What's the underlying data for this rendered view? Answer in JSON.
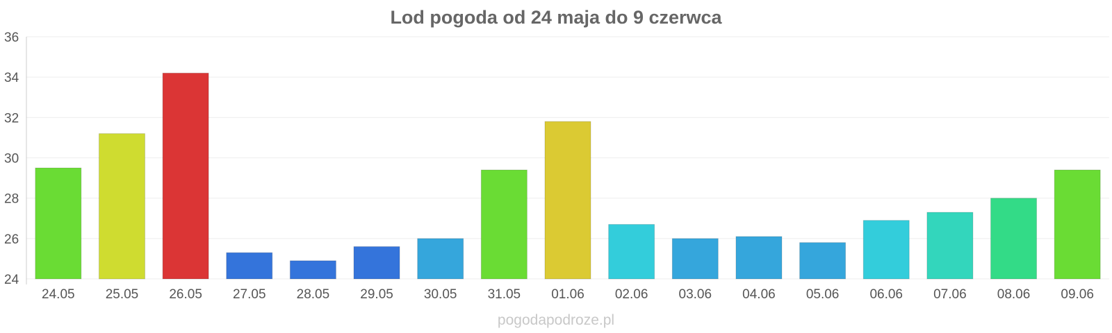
{
  "chart_data": {
    "type": "bar",
    "title": "Lod pogoda od 24 maja do 9 czerwca",
    "categories": [
      "24.05",
      "25.05",
      "26.05",
      "27.05",
      "28.05",
      "29.05",
      "30.05",
      "31.05",
      "01.06",
      "02.06",
      "03.06",
      "04.06",
      "05.06",
      "06.06",
      "07.06",
      "08.06",
      "09.06"
    ],
    "values": [
      29.5,
      31.2,
      34.2,
      25.3,
      24.9,
      25.6,
      26.0,
      29.4,
      31.8,
      26.7,
      26.0,
      26.1,
      25.8,
      26.9,
      27.3,
      28.0,
      29.4
    ],
    "colors": [
      "#6adc34",
      "#cfdc30",
      "#db3535",
      "#3474db",
      "#3474db",
      "#3474db",
      "#35a6dc",
      "#6adc34",
      "#dbca33",
      "#33cddb",
      "#35a6dc",
      "#35a6dc",
      "#35a6dc",
      "#33cddb",
      "#33d6bc",
      "#33db87",
      "#6adc34"
    ],
    "ylim": [
      24,
      36
    ],
    "yticks": [
      "24",
      "26",
      "28",
      "30",
      "32",
      "34",
      "36"
    ],
    "grid": true,
    "xlabel": "",
    "ylabel": ""
  },
  "watermark": "pogodapodroze.pl"
}
